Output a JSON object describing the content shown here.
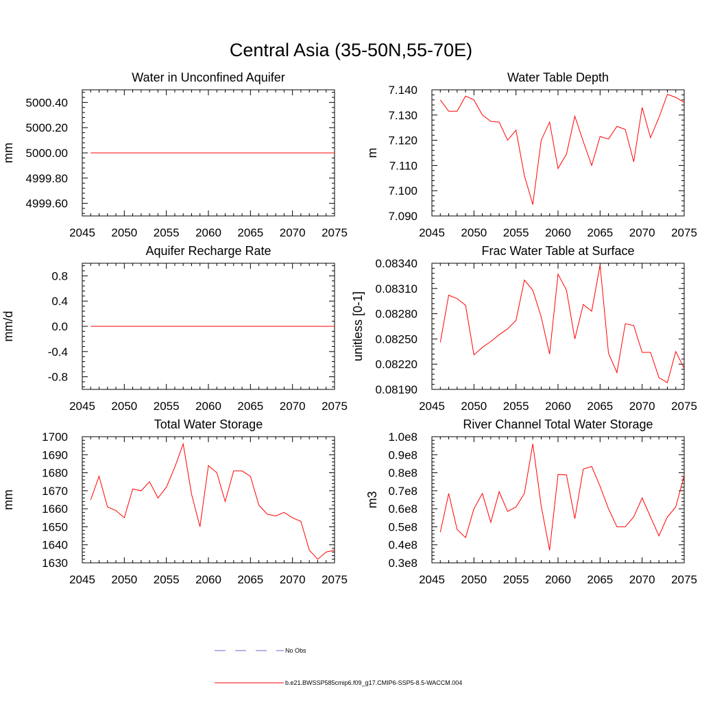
{
  "title": "Central Asia (35-50N,55-70E)",
  "line_color": "#ff0000",
  "obs_color": "#6a6acd",
  "legend": {
    "obs_label": "No Obs",
    "model_label": "b.e21.BWSSP585cmip6.f09_g17.CMIP6-SSP5-8.5-WACCM.004"
  },
  "chart_data": [
    {
      "type": "line",
      "title": "Water in Unconfined Aquifer",
      "ylabel": "mm",
      "xlim": [
        2045,
        2075
      ],
      "ylim": [
        4999.5,
        5000.5
      ],
      "xticks": [
        2045,
        2050,
        2055,
        2060,
        2065,
        2070,
        2075
      ],
      "xtick_labels": [
        "2045",
        "2050",
        "2055",
        "2060",
        "2065",
        "2070",
        "2075"
      ],
      "yticks": [
        4999.6,
        4999.8,
        5000.0,
        5000.2,
        5000.4
      ],
      "ytick_labels": [
        "4999.60",
        "4999.80",
        "5000.00",
        "5000.20",
        "5000.40"
      ],
      "x": [
        2046,
        2047,
        2048,
        2049,
        2050,
        2051,
        2052,
        2053,
        2054,
        2055,
        2056,
        2057,
        2058,
        2059,
        2060,
        2061,
        2062,
        2063,
        2064,
        2065,
        2066,
        2067,
        2068,
        2069,
        2070,
        2071,
        2072,
        2073,
        2074,
        2075
      ],
      "series": [
        {
          "values": [
            5000,
            5000,
            5000,
            5000,
            5000,
            5000,
            5000,
            5000,
            5000,
            5000,
            5000,
            5000,
            5000,
            5000,
            5000,
            5000,
            5000,
            5000,
            5000,
            5000,
            5000,
            5000,
            5000,
            5000,
            5000,
            5000,
            5000,
            5000,
            5000,
            5000
          ]
        }
      ]
    },
    {
      "type": "line",
      "title": "Water Table Depth",
      "ylabel": "m",
      "xlim": [
        2045,
        2075
      ],
      "ylim": [
        7.09,
        7.14
      ],
      "xticks": [
        2045,
        2050,
        2055,
        2060,
        2065,
        2070,
        2075
      ],
      "xtick_labels": [
        "2045",
        "2050",
        "2055",
        "2060",
        "2065",
        "2070",
        "2075"
      ],
      "yticks": [
        7.09,
        7.1,
        7.11,
        7.12,
        7.13,
        7.14
      ],
      "ytick_labels": [
        "7.090",
        "7.100",
        "7.110",
        "7.120",
        "7.130",
        "7.140"
      ],
      "x": [
        2046,
        2047,
        2048,
        2049,
        2050,
        2051,
        2052,
        2053,
        2054,
        2055,
        2056,
        2057,
        2058,
        2059,
        2060,
        2061,
        2062,
        2063,
        2064,
        2065,
        2066,
        2067,
        2068,
        2069,
        2070,
        2071,
        2072,
        2073,
        2074,
        2075
      ],
      "series": [
        {
          "values": [
            7.136,
            7.1315,
            7.1315,
            7.1375,
            7.136,
            7.13,
            7.1275,
            7.1272,
            7.12,
            7.124,
            7.106,
            7.0945,
            7.12,
            7.1272,
            7.1088,
            7.1145,
            7.1295,
            7.1195,
            7.11,
            7.1215,
            7.1205,
            7.1255,
            7.1243,
            7.1115,
            7.133,
            7.121,
            7.129,
            7.1382,
            7.137,
            7.135
          ]
        }
      ]
    },
    {
      "type": "line",
      "title": "Aquifer Recharge Rate",
      "ylabel": "mm/d",
      "xlim": [
        2045,
        2075
      ],
      "ylim": [
        -1.0,
        1.0
      ],
      "xticks": [
        2045,
        2050,
        2055,
        2060,
        2065,
        2070,
        2075
      ],
      "xtick_labels": [
        "2045",
        "2050",
        "2055",
        "2060",
        "2065",
        "2070",
        "2075"
      ],
      "yticks": [
        -0.8,
        -0.4,
        0.0,
        0.4,
        0.8
      ],
      "ytick_labels": [
        "-0.8",
        "-0.4",
        "0.0",
        "0.4",
        "0.8"
      ],
      "x": [
        2046,
        2047,
        2048,
        2049,
        2050,
        2051,
        2052,
        2053,
        2054,
        2055,
        2056,
        2057,
        2058,
        2059,
        2060,
        2061,
        2062,
        2063,
        2064,
        2065,
        2066,
        2067,
        2068,
        2069,
        2070,
        2071,
        2072,
        2073,
        2074,
        2075
      ],
      "series": [
        {
          "values": [
            0,
            0,
            0,
            0,
            0,
            0,
            0,
            0,
            0,
            0,
            0,
            0,
            0,
            0,
            0,
            0,
            0,
            0,
            0,
            0,
            0,
            0,
            0,
            0,
            0,
            0,
            0,
            0,
            0,
            0
          ]
        }
      ]
    },
    {
      "type": "line",
      "title": "Frac Water Table at Surface",
      "ylabel": "unitless [0-1]",
      "xlim": [
        2045,
        2075
      ],
      "ylim": [
        0.0819,
        0.0834
      ],
      "xticks": [
        2045,
        2050,
        2055,
        2060,
        2065,
        2070,
        2075
      ],
      "xtick_labels": [
        "2045",
        "2050",
        "2055",
        "2060",
        "2065",
        "2070",
        "2075"
      ],
      "yticks": [
        0.0819,
        0.0822,
        0.0825,
        0.0828,
        0.0831,
        0.0834
      ],
      "ytick_labels": [
        "0.08190",
        "0.08220",
        "0.08250",
        "0.08280",
        "0.08310",
        "0.08340"
      ],
      "x": [
        2046,
        2047,
        2048,
        2049,
        2050,
        2051,
        2052,
        2053,
        2054,
        2055,
        2056,
        2057,
        2058,
        2059,
        2060,
        2061,
        2062,
        2063,
        2064,
        2065,
        2066,
        2067,
        2068,
        2069,
        2070,
        2071,
        2072,
        2073,
        2074,
        2075
      ],
      "series": [
        {
          "values": [
            0.08246,
            0.08302,
            0.08298,
            0.0829,
            0.08231,
            0.0824,
            0.08247,
            0.08255,
            0.08262,
            0.08272,
            0.0832,
            0.08308,
            0.08276,
            0.08232,
            0.08327,
            0.08308,
            0.0825,
            0.08291,
            0.08283,
            0.08338,
            0.08233,
            0.0821,
            0.08268,
            0.08266,
            0.08234,
            0.08234,
            0.08204,
            0.08198,
            0.08235,
            0.08215
          ]
        }
      ]
    },
    {
      "type": "line",
      "title": "Total Water Storage",
      "ylabel": "mm",
      "xlim": [
        2045,
        2075
      ],
      "ylim": [
        1630,
        1700
      ],
      "xticks": [
        2045,
        2050,
        2055,
        2060,
        2065,
        2070,
        2075
      ],
      "xtick_labels": [
        "2045",
        "2050",
        "2055",
        "2060",
        "2065",
        "2070",
        "2075"
      ],
      "yticks": [
        1630,
        1640,
        1650,
        1660,
        1670,
        1680,
        1690,
        1700
      ],
      "ytick_labels": [
        "1630",
        "1640",
        "1650",
        "1660",
        "1670",
        "1680",
        "1690",
        "1700"
      ],
      "x": [
        2046,
        2047,
        2048,
        2049,
        2050,
        2051,
        2052,
        2053,
        2054,
        2055,
        2056,
        2057,
        2058,
        2059,
        2060,
        2061,
        2062,
        2063,
        2064,
        2065,
        2066,
        2067,
        2068,
        2069,
        2070,
        2071,
        2072,
        2073,
        2074,
        2075
      ],
      "series": [
        {
          "values": [
            1665,
            1678,
            1661,
            1659,
            1655,
            1671,
            1670,
            1675,
            1666,
            1672,
            1683,
            1696,
            1668,
            1650,
            1684,
            1680,
            1664,
            1681,
            1681,
            1678,
            1662,
            1657,
            1656,
            1658,
            1655,
            1653,
            1637,
            1632,
            1636,
            1637
          ]
        }
      ]
    },
    {
      "type": "line",
      "title": "River Channel Total Water Storage",
      "ylabel": "m3",
      "xlim": [
        2045,
        2075
      ],
      "ylim": [
        0.3,
        1.0
      ],
      "xticks": [
        2045,
        2050,
        2055,
        2060,
        2065,
        2070,
        2075
      ],
      "xtick_labels": [
        "2045",
        "2050",
        "2055",
        "2060",
        "2065",
        "2070",
        "2075"
      ],
      "yticks": [
        0.3,
        0.4,
        0.5,
        0.6,
        0.7,
        0.8,
        0.9,
        1.0
      ],
      "ytick_labels": [
        "0.3e8",
        "0.4e8",
        "0.5e8",
        "0.6e8",
        "0.7e8",
        "0.8e8",
        "0.9e8",
        "1.0e8"
      ],
      "x": [
        2046,
        2047,
        2048,
        2049,
        2050,
        2051,
        2052,
        2053,
        2054,
        2055,
        2056,
        2057,
        2058,
        2059,
        2060,
        2061,
        2062,
        2063,
        2064,
        2065,
        2066,
        2067,
        2068,
        2069,
        2070,
        2071,
        2072,
        2073,
        2074,
        2075
      ],
      "series": [
        {
          "values": [
            0.47,
            0.685,
            0.485,
            0.44,
            0.6,
            0.685,
            0.525,
            0.695,
            0.585,
            0.61,
            0.685,
            0.96,
            0.615,
            0.37,
            0.79,
            0.788,
            0.545,
            0.82,
            0.835,
            0.725,
            0.6,
            0.5,
            0.5,
            0.555,
            0.66,
            0.555,
            0.45,
            0.555,
            0.61,
            0.785
          ]
        }
      ]
    }
  ]
}
